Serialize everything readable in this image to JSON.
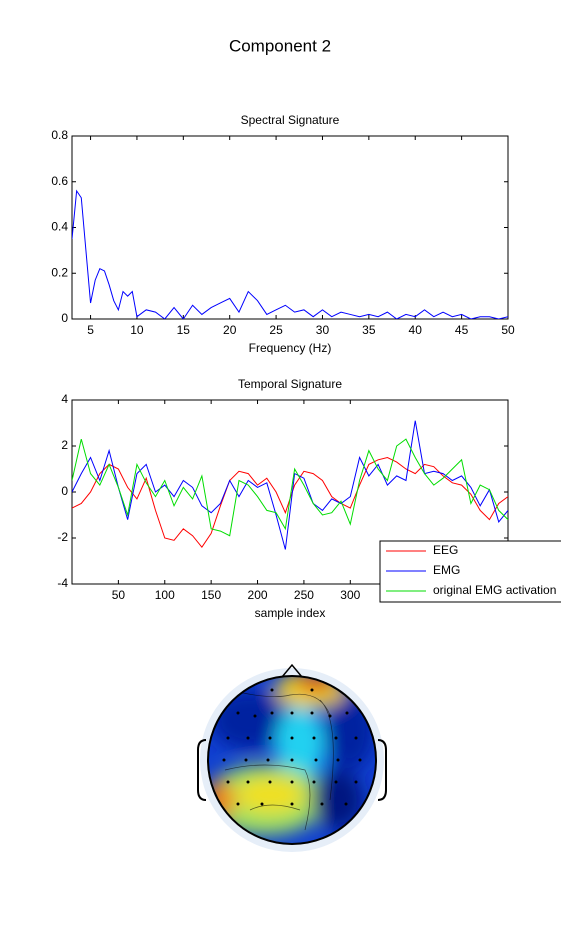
{
  "title": "Component 2",
  "chart_data": [
    {
      "type": "line",
      "title": "Spectral Signature",
      "xlabel": "Frequency (Hz)",
      "x": [
        3,
        3.5,
        4,
        4.5,
        5,
        5.5,
        6,
        6.5,
        7,
        7.5,
        8,
        8.5,
        9,
        9.5,
        10,
        11,
        12,
        13,
        14,
        15,
        16,
        17,
        18,
        19,
        20,
        21,
        22,
        23,
        24,
        25,
        26,
        27,
        28,
        29,
        30,
        31,
        32,
        33,
        34,
        35,
        36,
        37,
        38,
        39,
        40,
        41,
        42,
        43,
        44,
        45,
        46,
        47,
        48,
        49,
        50
      ],
      "values": [
        0.35,
        0.56,
        0.53,
        0.3,
        0.07,
        0.17,
        0.22,
        0.21,
        0.15,
        0.08,
        0.04,
        0.12,
        0.1,
        0.12,
        0.01,
        0.04,
        0.03,
        0.0,
        0.05,
        0.0,
        0.06,
        0.02,
        0.05,
        0.07,
        0.09,
        0.03,
        0.12,
        0.08,
        0.02,
        0.04,
        0.06,
        0.03,
        0.04,
        0.01,
        0.04,
        0.01,
        0.03,
        0.02,
        0.01,
        0.02,
        0.01,
        0.03,
        0.0,
        0.02,
        0.01,
        0.04,
        0.01,
        0.03,
        0.01,
        0.02,
        0.0,
        0.01,
        0.01,
        0.0,
        0.01
      ],
      "color": "#0000ff",
      "xlim": [
        3,
        50
      ],
      "xticks": [
        5,
        10,
        15,
        20,
        25,
        30,
        35,
        40,
        45,
        50
      ],
      "ylim": [
        0,
        0.8
      ],
      "yticks": [
        0,
        0.2,
        0.4,
        0.6,
        0.8
      ]
    },
    {
      "type": "line",
      "title": "Temporal Signature",
      "xlabel": "sample index",
      "x": [
        0,
        10,
        20,
        30,
        40,
        50,
        60,
        70,
        80,
        90,
        100,
        110,
        120,
        130,
        140,
        150,
        160,
        170,
        180,
        190,
        200,
        210,
        220,
        230,
        240,
        250,
        260,
        270,
        280,
        290,
        300,
        310,
        320,
        330,
        340,
        350,
        360,
        370,
        380,
        390,
        400,
        410,
        420,
        430,
        440,
        450,
        460,
        470
      ],
      "series": [
        {
          "name": "EEG",
          "color": "#ff0000",
          "values": [
            -0.7,
            -0.5,
            0,
            0.8,
            1.2,
            1.0,
            0.2,
            -0.3,
            0.6,
            -0.8,
            -2.0,
            -2.1,
            -1.6,
            -1.9,
            -2.4,
            -1.8,
            -0.6,
            0.5,
            0.9,
            0.8,
            0.3,
            0.6,
            0,
            -0.9,
            0.3,
            0.9,
            0.8,
            0.5,
            -0.2,
            -0.5,
            -0.7,
            0.3,
            1.2,
            1.4,
            1.5,
            1.3,
            1.0,
            0.8,
            1.2,
            1.1,
            0.7,
            0.4,
            0.3,
            -0.1,
            -0.8,
            -1.2,
            -0.5,
            -0.2
          ]
        },
        {
          "name": "EMG",
          "color": "#0000ff",
          "values": [
            0,
            0.8,
            1.5,
            0.5,
            1.8,
            0.2,
            -1.2,
            0.8,
            1.2,
            0,
            0.3,
            -0.2,
            0.5,
            0.2,
            -0.6,
            -0.9,
            -0.5,
            0.5,
            -0.2,
            0.5,
            0.2,
            0.4,
            -1.0,
            -2.5,
            0.8,
            0.6,
            -0.5,
            -0.8,
            -0.3,
            -0.5,
            -0.2,
            1.5,
            0.7,
            1.2,
            0.3,
            0.7,
            0.5,
            3.1,
            0.8,
            0.9,
            0.8,
            0.5,
            0.7,
            0.2,
            -0.6,
            0.1,
            -1.3,
            -0.8
          ]
        },
        {
          "name": "original EMG activation",
          "color": "#00dd00",
          "values": [
            0.5,
            2.3,
            0.8,
            0.3,
            1.2,
            0.2,
            -1.0,
            1.2,
            0.4,
            -0.2,
            0.5,
            -0.6,
            0.2,
            -0.3,
            0.7,
            -1.6,
            -1.7,
            -1.9,
            0.5,
            0.3,
            -0.2,
            -0.8,
            -0.9,
            -1.6,
            1.0,
            0.3,
            -0.5,
            -1.0,
            -0.9,
            -0.4,
            -1.4,
            0.5,
            1.8,
            1.0,
            0.5,
            2.0,
            2.3,
            1.5,
            0.8,
            0.3,
            0.6,
            1.0,
            1.4,
            -0.5,
            0.3,
            0.1,
            -0.8,
            -1.2
          ]
        }
      ],
      "xlim": [
        0,
        470
      ],
      "xticks": [
        50,
        100,
        150,
        200,
        250,
        300
      ],
      "ylim": [
        -4,
        4
      ],
      "yticks": [
        -4,
        -2,
        0,
        2,
        4
      ]
    }
  ]
}
